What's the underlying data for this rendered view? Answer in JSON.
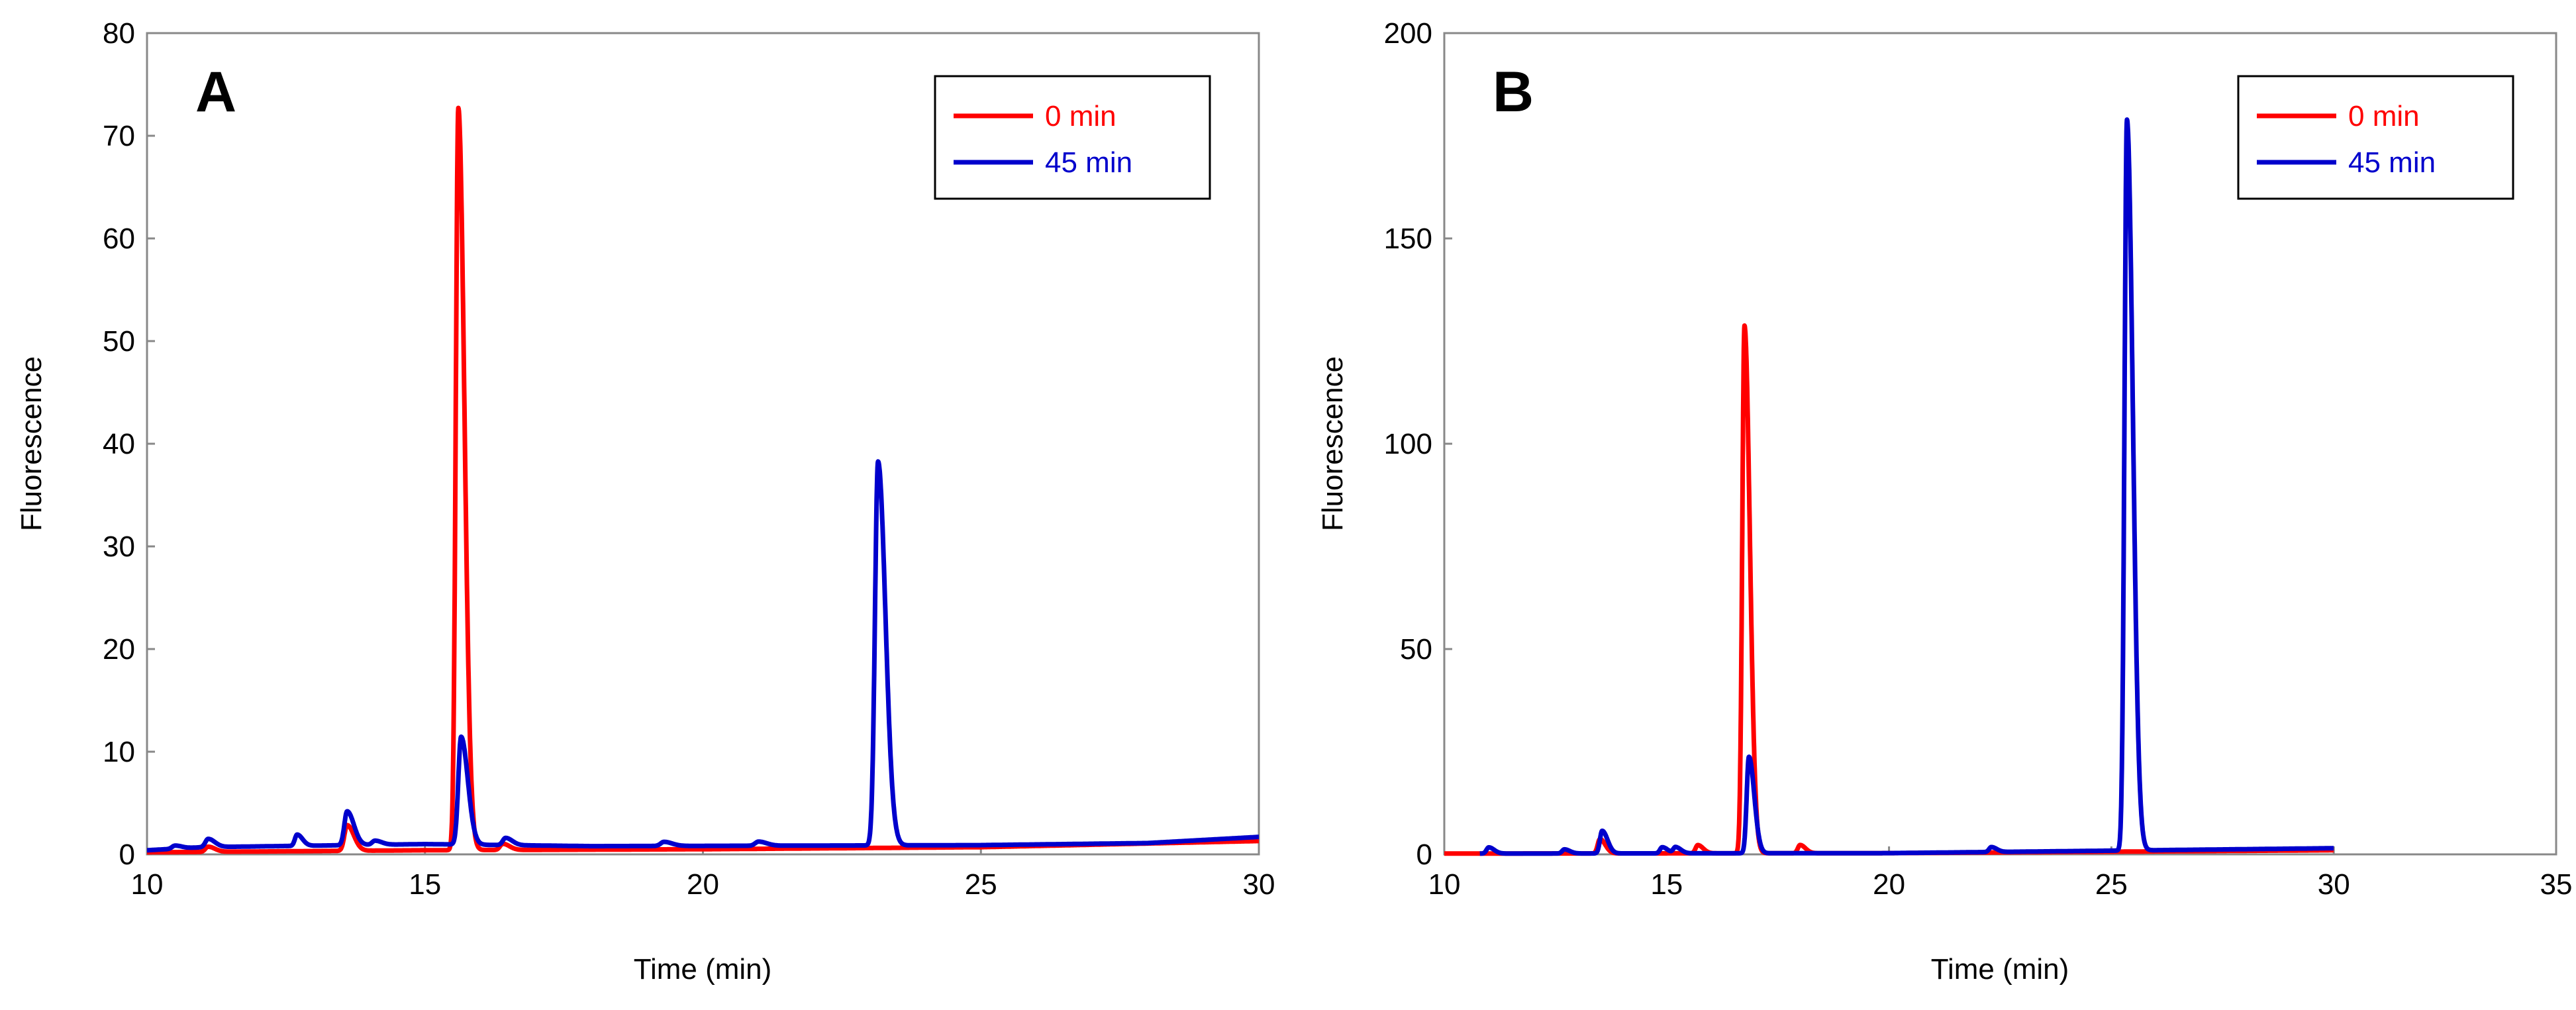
{
  "chart_data": [
    {
      "type": "line",
      "panel_label": "A",
      "xlabel": "Time (min)",
      "ylabel": "Fluorescence",
      "xlim": [
        10,
        30
      ],
      "ylim": [
        0,
        80
      ],
      "xticks": [
        10,
        15,
        20,
        25,
        30
      ],
      "yticks": [
        0,
        10,
        20,
        30,
        40,
        50,
        60,
        70,
        80
      ],
      "xtick_labels": [
        "10",
        "15",
        "20",
        "25",
        "30"
      ],
      "ytick_labels": [
        "0",
        "10",
        "20",
        "30",
        "40",
        "50",
        "60",
        "70",
        "80"
      ],
      "legend_position": "top-right",
      "series": [
        {
          "name": "0 min",
          "color": "#ff0000",
          "baseline": [
            [
              10,
              0.2
            ],
            [
              15,
              0.4
            ],
            [
              20,
              0.5
            ],
            [
              25,
              0.7
            ],
            [
              30,
              1.3
            ]
          ],
          "peaks": [
            [
              11.1,
              0.5,
              0.05
            ],
            [
              13.6,
              2.5,
              0.05
            ],
            [
              15.6,
              72.3,
              0.045
            ],
            [
              16.4,
              0.6,
              0.05
            ]
          ]
        },
        {
          "name": "45 min",
          "color": "#0000cc",
          "baseline": [
            [
              10,
              0.4
            ],
            [
              11.0,
              0.7
            ],
            [
              15,
              1.0
            ],
            [
              18,
              0.8
            ],
            [
              25,
              0.9
            ],
            [
              28,
              1.1
            ],
            [
              30,
              1.7
            ]
          ],
          "peaks": [
            [
              10.5,
              0.3,
              0.05
            ],
            [
              11.1,
              0.8,
              0.05
            ],
            [
              12.7,
              1.1,
              0.04
            ],
            [
              13.6,
              3.3,
              0.05
            ],
            [
              14.1,
              0.4,
              0.05
            ],
            [
              15.65,
              10.5,
              0.05
            ],
            [
              16.45,
              0.7,
              0.05
            ],
            [
              19.3,
              0.4,
              0.06
            ],
            [
              21.0,
              0.4,
              0.06
            ],
            [
              23.15,
              37.4,
              0.055
            ]
          ]
        }
      ]
    },
    {
      "type": "line",
      "panel_label": "B",
      "xlabel": "Time (min)",
      "ylabel": "Fluorescence",
      "xlim": [
        10,
        35
      ],
      "ylim": [
        0,
        200
      ],
      "xticks": [
        10,
        15,
        20,
        25,
        30,
        35
      ],
      "yticks": [
        0,
        50,
        100,
        150,
        200
      ],
      "xtick_labels": [
        "10",
        "15",
        "20",
        "25",
        "30",
        "35"
      ],
      "ytick_labels": [
        "0",
        "50",
        "100",
        "150",
        "200"
      ],
      "legend_position": "top-right",
      "series": [
        {
          "name": "0 min",
          "color": "#ff0000",
          "baseline": [
            [
              10,
              0.2
            ],
            [
              20,
              0.3
            ],
            [
              30,
              1.0
            ]
          ],
          "peaks": [
            [
              13.5,
              3.5,
              0.05
            ],
            [
              15.7,
              2.0,
              0.05
            ],
            [
              16.75,
              128.5,
              0.05
            ],
            [
              18.0,
              2.0,
              0.05
            ]
          ]
        },
        {
          "name": "45 min",
          "color": "#0000cc",
          "baseline": [
            [
              10.8,
              0.2
            ],
            [
              20,
              0.3
            ],
            [
              30,
              1.5
            ]
          ],
          "peaks": [
            [
              11.0,
              1.5,
              0.05
            ],
            [
              12.7,
              1.0,
              0.05
            ],
            [
              13.55,
              5.5,
              0.05
            ],
            [
              14.9,
              1.5,
              0.05
            ],
            [
              15.2,
              1.5,
              0.05
            ],
            [
              16.85,
              23.5,
              0.05
            ],
            [
              22.3,
              1.2,
              0.05
            ],
            [
              25.35,
              178.0,
              0.055
            ]
          ]
        }
      ]
    }
  ]
}
